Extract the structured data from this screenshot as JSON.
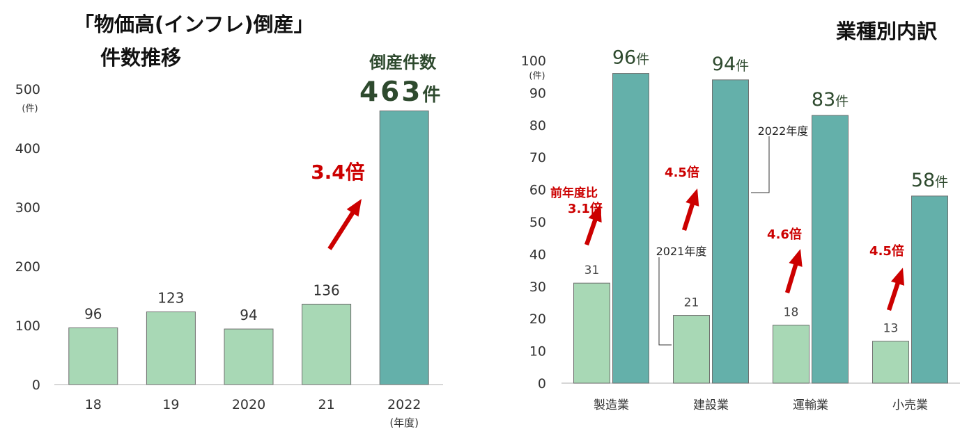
{
  "left_title_line1": "「物価高(インフレ)倒産」",
  "left_title_line2": "件数推移",
  "right_title": "業種別内訳",
  "colors": {
    "light_bar": "#a8d8b5",
    "dark_bar": "#64b0aa",
    "accent_red": "#cc0000",
    "heading_green": "#2e4a2e"
  },
  "chart_data": [
    {
      "type": "bar",
      "title": "「物価高(インフレ)倒産」 件数推移",
      "categories": [
        "18",
        "19",
        "2020",
        "21",
        "2022"
      ],
      "values": [
        96,
        123,
        94,
        136,
        463
      ],
      "ylim": [
        0,
        500
      ],
      "yticks": [
        0,
        100,
        200,
        300,
        400,
        500
      ],
      "y_unit": "(件)",
      "x_unit": "(年度)",
      "highlight": {
        "label_top": "倒産件数",
        "value_text": "463",
        "unit": "件"
      },
      "annotation": "3.4倍"
    },
    {
      "type": "bar",
      "title": "業種別内訳",
      "categories": [
        "製造業",
        "建設業",
        "運輸業",
        "小売業"
      ],
      "series": [
        {
          "name": "2021年度",
          "values": [
            31,
            21,
            18,
            13
          ]
        },
        {
          "name": "2022年度",
          "values": [
            96,
            94,
            83,
            58
          ]
        }
      ],
      "value_unit": "件",
      "ylim": [
        0,
        100
      ],
      "yticks": [
        0,
        10,
        20,
        30,
        40,
        50,
        60,
        70,
        80,
        90,
        100
      ],
      "y_unit": "(件)",
      "ratio_labels": [
        "3.1倍",
        "4.5倍",
        "4.6倍",
        "4.5倍"
      ],
      "ratio_prefix": "前年度比"
    }
  ]
}
